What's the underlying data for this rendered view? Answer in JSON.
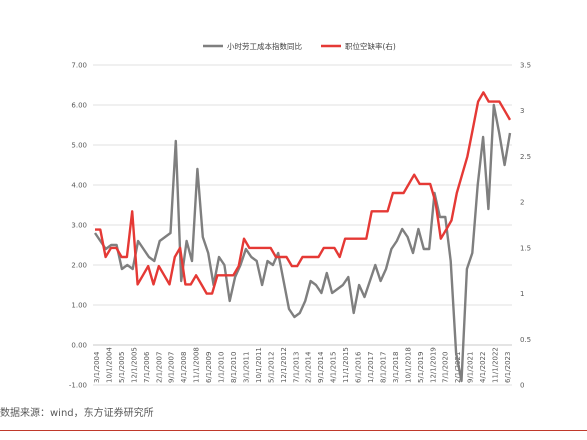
{
  "chart_data": {
    "type": "line",
    "legend_position": "top",
    "grid": true,
    "series": [
      {
        "name": "小时劳工成本指数同比",
        "axis": "left",
        "color": "#7f7f7f",
        "values": [
          2.8,
          2.6,
          2.4,
          2.5,
          2.5,
          1.9,
          2.0,
          1.9,
          2.6,
          2.4,
          2.2,
          2.1,
          2.6,
          2.7,
          2.8,
          5.1,
          1.6,
          2.6,
          2.1,
          4.4,
          2.7,
          2.3,
          1.5,
          2.2,
          2.0,
          1.1,
          1.7,
          2.0,
          2.4,
          2.2,
          2.1,
          1.5,
          2.1,
          2.0,
          2.3,
          1.6,
          0.9,
          0.7,
          0.8,
          1.1,
          1.6,
          1.5,
          1.3,
          1.8,
          1.3,
          1.4,
          1.5,
          1.7,
          0.8,
          1.5,
          1.2,
          1.6,
          2.0,
          1.6,
          1.9,
          2.4,
          2.6,
          2.9,
          2.7,
          2.3,
          2.9,
          2.4,
          2.4,
          3.8,
          3.2,
          3.2,
          2.1,
          -0.2,
          -0.9,
          1.9,
          2.3,
          4.0,
          5.2,
          3.4,
          6.0,
          5.3,
          4.5,
          5.3
        ]
      },
      {
        "name": "职位空缺率(右)",
        "axis": "right",
        "color": "#e53935",
        "values": [
          1.7,
          1.7,
          1.4,
          1.5,
          1.5,
          1.4,
          1.4,
          1.9,
          1.1,
          1.2,
          1.3,
          1.1,
          1.3,
          1.2,
          1.1,
          1.4,
          1.5,
          1.1,
          1.1,
          1.2,
          1.1,
          1.0,
          1.0,
          1.2,
          1.2,
          1.2,
          1.2,
          1.3,
          1.6,
          1.5,
          1.5,
          1.5,
          1.5,
          1.5,
          1.4,
          1.4,
          1.4,
          1.3,
          1.3,
          1.4,
          1.4,
          1.4,
          1.4,
          1.5,
          1.5,
          1.5,
          1.4,
          1.6,
          1.6,
          1.6,
          1.6,
          1.6,
          1.9,
          1.9,
          1.9,
          1.9,
          2.1,
          2.1,
          2.1,
          2.2,
          2.3,
          2.2,
          2.2,
          2.2,
          2.0,
          1.6,
          1.7,
          1.8,
          2.1,
          2.3,
          2.5,
          2.8,
          3.1,
          3.2,
          3.1,
          3.1,
          3.1,
          3.0,
          2.9
        ]
      }
    ],
    "y_left": {
      "min": -1.0,
      "max": 7.0,
      "step": 1.0,
      "labels": [
        "-1.00",
        "0.00",
        "1.00",
        "2.00",
        "3.00",
        "4.00",
        "5.00",
        "6.00",
        "7.00"
      ]
    },
    "y_right": {
      "min": 0,
      "max": 3.5,
      "step": 0.5,
      "labels": [
        "0",
        "0.5",
        "1",
        "1.5",
        "2",
        "2.5",
        "3",
        "3.5"
      ]
    },
    "x_ticks": [
      "3/1/2004",
      "10/1/2004",
      "5/1/2005",
      "12/1/2005",
      "7/1/2006",
      "2/1/2007",
      "9/1/2007",
      "4/1/2008",
      "11/1/2008",
      "6/1/2009",
      "1/1/2010",
      "8/1/2010",
      "3/1/2011",
      "10/1/2011",
      "5/1/2012",
      "12/1/2012",
      "7/1/2013",
      "2/1/2014",
      "9/1/2014",
      "4/1/2015",
      "11/1/2015",
      "6/1/2016",
      "1/1/2017",
      "8/1/2017",
      "3/1/2018",
      "10/1/2018",
      "5/1/2019",
      "12/1/2019",
      "7/1/2020",
      "2/1/2021",
      "9/1/2021",
      "4/1/2022",
      "11/1/2022",
      "6/1/2023"
    ]
  },
  "source_text": "数据来源：wind，东方证券研究所"
}
